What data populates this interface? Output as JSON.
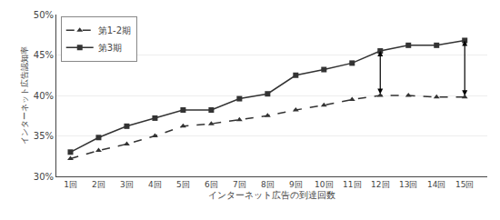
{
  "chart_data": {
    "type": "line",
    "x_label": "インターネット広告の到達回数",
    "y_label": "インターネット広告認知率",
    "x": [
      1,
      2,
      3,
      4,
      5,
      6,
      7,
      8,
      9,
      10,
      11,
      12,
      13,
      14,
      15
    ],
    "series": [
      {
        "name": "第1-2期",
        "color": "#333333",
        "marker": "triangle",
        "line_style": "dashed",
        "values": [
          32.2,
          33.2,
          34.0,
          35.0,
          36.2,
          36.5,
          37.0,
          37.5,
          38.2,
          38.8,
          39.5,
          40.0,
          40.0,
          39.8,
          39.8
        ]
      },
      {
        "name": "第3期",
        "color": "#333333",
        "marker": "square",
        "line_style": "solid",
        "values": [
          33.0,
          34.8,
          36.2,
          37.2,
          38.2,
          38.2,
          39.6,
          40.2,
          42.5,
          43.2,
          44.0,
          45.5,
          46.2,
          46.2,
          46.8
        ]
      }
    ],
    "xlim": [
      0.5,
      15.8
    ],
    "xticks": [
      {
        "value": 1,
        "label": "1回"
      },
      {
        "value": 2,
        "label": "2回"
      },
      {
        "value": 3,
        "label": "3回"
      },
      {
        "value": 4,
        "label": "4回"
      },
      {
        "value": 5,
        "label": "5回"
      },
      {
        "value": 6,
        "label": "6回"
      },
      {
        "value": 7,
        "label": "7回"
      },
      {
        "value": 8,
        "label": "8回"
      },
      {
        "value": 9,
        "label": "9回"
      },
      {
        "value": 10,
        "label": "10回"
      },
      {
        "value": 11,
        "label": "11回"
      },
      {
        "value": 12,
        "label": "12回"
      },
      {
        "value": 13,
        "label": "13回"
      },
      {
        "value": 14,
        "label": "14回"
      },
      {
        "value": 15,
        "label": "15回"
      }
    ],
    "ylim": [
      30,
      50
    ],
    "yticks": [
      {
        "value": 30,
        "label": "30%"
      },
      {
        "value": 35,
        "label": "35%"
      },
      {
        "value": 40,
        "label": "40%"
      },
      {
        "value": 45,
        "label": "45%"
      },
      {
        "value": 50,
        "label": "50%"
      }
    ],
    "gap_arrows": [
      {
        "x": 12,
        "from": 40.0,
        "to": 45.5
      },
      {
        "x": 15,
        "from": 39.8,
        "to": 46.8
      }
    ],
    "grid": true,
    "legend": "upper left"
  }
}
